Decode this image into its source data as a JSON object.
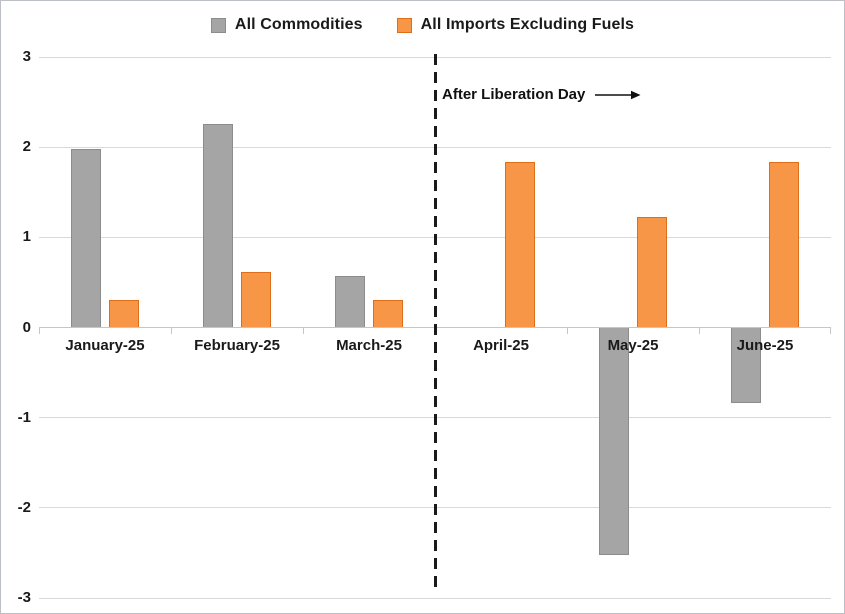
{
  "legend": {
    "items": [
      {
        "label": "All Commodities"
      },
      {
        "label": "All Imports Excluding Fuels"
      }
    ]
  },
  "annotation": {
    "text": "After Liberation Day"
  },
  "chart_data": {
    "type": "bar",
    "title": "",
    "xlabel": "",
    "ylabel": "",
    "categories": [
      "January-25",
      "February-25",
      "March-25",
      "April-25",
      "May-25",
      "June-25"
    ],
    "series": [
      {
        "name": "All Commodities",
        "color": "#A5A5A5",
        "border": "#8C8C8C",
        "values": [
          1.98,
          2.26,
          0.57,
          0,
          -2.52,
          -0.84
        ]
      },
      {
        "name": "All Imports Excluding Fuels",
        "color": "#F79646",
        "border": "#DD6F1A",
        "values": [
          0.3,
          0.61,
          0.3,
          1.84,
          1.22,
          1.84
        ]
      }
    ],
    "ylim": [
      -3,
      3
    ],
    "yticks": [
      3,
      2,
      1,
      0,
      -1,
      -2,
      -3
    ],
    "grid": true,
    "legend_position": "top",
    "divider_after_index": 2,
    "annotation": "After Liberation Day"
  },
  "colors": {
    "gridline": "#d9d9d9",
    "axis": "#c6c6c6",
    "divider": "#1a1a1a",
    "background": "#ffffff"
  }
}
